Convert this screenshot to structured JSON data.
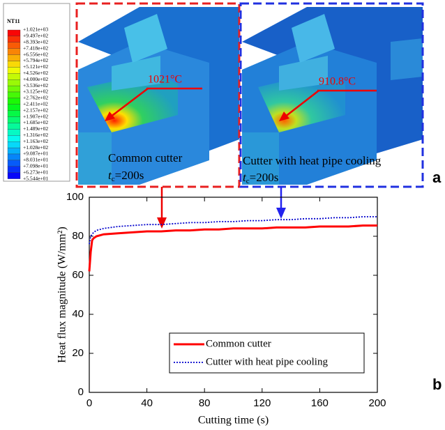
{
  "panel_a": {
    "legend_title": "NT11",
    "legend_labels": [
      "+1.021e+03",
      "+9.497e+02",
      "+8.393e+02",
      "+7.418e+02",
      "+6.556e+02",
      "+5.794e+02",
      "+5.121e+02",
      "+4.526e+02",
      "+4.000e+02",
      "+3.536e+02",
      "+3.125e+02",
      "+2.762e+02",
      "+2.411e+02",
      "+2.157e+02",
      "+1.907e+02",
      "+1.685e+02",
      "+1.489e+02",
      "+1.316e+02",
      "+1.163e+02",
      "+1.028e+02",
      "+9.087e+01",
      "+8.031e+01",
      "+7.098e+01",
      "+6.273e+01",
      "+5.544e+01"
    ],
    "images": [
      {
        "temperature": "1021°C",
        "label": "Common cutter",
        "time_var": "t",
        "time_sub": "c",
        "time_value": "=200s"
      },
      {
        "temperature": "910.8°C",
        "label": "Cutter with heat pipe cooling",
        "time_var": "t",
        "time_sub": "c",
        "time_value": "=200s"
      }
    ],
    "panel_label": "a"
  },
  "panel_b_label": "b",
  "chart_data": {
    "type": "line",
    "xlabel": "Cutting time (s)",
    "ylabel": "Heat flux magnitude (W/mm²)",
    "x": [
      0,
      1,
      2,
      3,
      5,
      10,
      20,
      30,
      40,
      50,
      60,
      70,
      80,
      90,
      100,
      110,
      120,
      130,
      140,
      150,
      160,
      170,
      180,
      190,
      200
    ],
    "series": [
      {
        "name": "Common cutter",
        "color": "#ff0000",
        "style": "solid",
        "values": [
          62,
          72,
          78,
          79,
          80,
          81,
          81.5,
          82,
          82.5,
          82.5,
          83,
          83,
          83.5,
          83.5,
          84,
          84,
          84,
          84.5,
          84.5,
          84.5,
          85,
          85,
          85,
          85.5,
          85.5
        ]
      },
      {
        "name": "Cutter with heat pipe cooling",
        "color": "#0000cc",
        "style": "dotted",
        "values": [
          76,
          80,
          81,
          82,
          83,
          84,
          85,
          85.5,
          86,
          86,
          86.5,
          87,
          87,
          87.5,
          87.5,
          88,
          88,
          88.5,
          88.5,
          89,
          89,
          89.5,
          89.5,
          90,
          90
        ]
      }
    ],
    "xlim": [
      0,
      200
    ],
    "xticks": [
      0,
      40,
      80,
      120,
      160,
      200
    ],
    "ylim": [
      0,
      100
    ],
    "yticks": [
      0,
      20,
      40,
      60,
      80,
      100
    ]
  }
}
